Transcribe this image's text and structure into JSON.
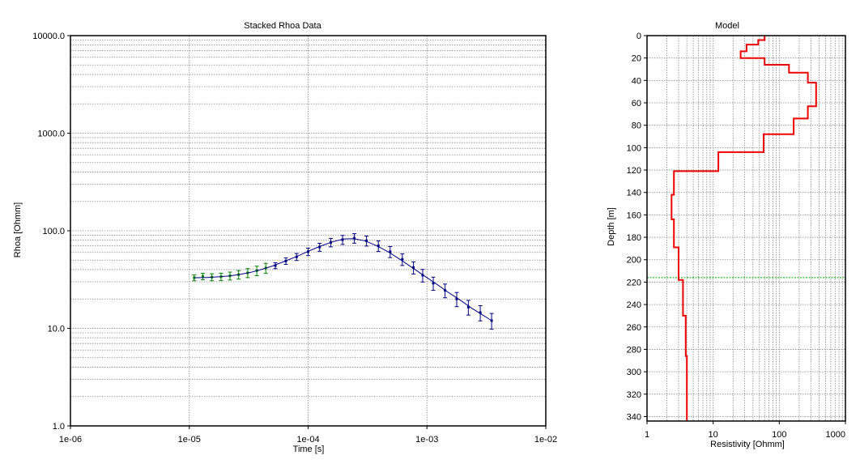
{
  "chart_data": [
    {
      "type": "line",
      "title": "Stacked Rhoa Data",
      "xlabel": "Time [s]",
      "ylabel": "Rhoa [Ohmm]",
      "x_scale": "log",
      "y_scale": "log",
      "xlim": [
        1e-06,
        0.01
      ],
      "ylim": [
        1.0,
        10000.0
      ],
      "x_ticks": [
        1e-06,
        1e-05,
        0.0001,
        0.001,
        0.01
      ],
      "x_tick_labels": [
        "1e-06",
        "1e-05",
        "1e-04",
        "1e-03",
        "1e-02"
      ],
      "y_ticks": [
        1.0,
        10.0,
        100.0,
        1000.0,
        10000.0
      ],
      "y_tick_labels": [
        "1.0",
        "10.0",
        "100.0",
        "1000.0",
        "10000.0"
      ],
      "grid": true,
      "series": [
        {
          "kind": "measured",
          "color": "#008000",
          "x": [
            1.1e-05,
            1.3e-05,
            1.55e-05,
            1.85e-05,
            2.2e-05,
            2.6e-05,
            3.1e-05,
            3.7e-05,
            4.4e-05
          ],
          "y": [
            33.0,
            34.0,
            33.5,
            33.8,
            34.5,
            35.5,
            37.0,
            39.0,
            41.5
          ]
        },
        {
          "kind": "measured",
          "color": "#000080",
          "x": [
            5.3e-05,
            6.5e-05,
            8e-05,
            0.0001,
            0.000125,
            0.000155,
            0.000195,
            0.000245,
            0.00031,
            0.00039,
            0.00049,
            0.00062,
            0.00077,
            0.00092,
            0.00113,
            0.00142,
            0.00178,
            0.00223,
            0.00281,
            0.0035
          ],
          "y": [
            44.0,
            49.0,
            54.0,
            61.0,
            68.0,
            76.0,
            81.0,
            84.0,
            79.0,
            70.0,
            61.0,
            51.0,
            42.0,
            35.0,
            29.0,
            24.5,
            20.0,
            16.5,
            14.5,
            12.0
          ]
        },
        {
          "kind": "model response",
          "color": "#000080",
          "x": [
            1.1e-05,
            1.4e-05,
            1.8e-05,
            2.2e-05,
            2.7e-05,
            3.3e-05,
            4e-05,
            5e-05,
            6.3e-05,
            8e-05,
            0.0001,
            0.000125,
            0.00016,
            0.0002,
            0.00024,
            0.0003,
            0.00038,
            0.00048,
            0.0006,
            0.00075,
            0.00095,
            0.0012,
            0.0015,
            0.0019,
            0.0024,
            0.003,
            0.0035
          ],
          "y": [
            33.0,
            33.2,
            33.8,
            34.5,
            35.8,
            37.5,
            40.0,
            43.5,
            48.5,
            54.5,
            61.5,
            69.0,
            77.0,
            82.5,
            83.0,
            79.0,
            70.0,
            60.0,
            50.5,
            42.0,
            34.5,
            28.5,
            23.5,
            19.5,
            16.0,
            13.5,
            12.0
          ]
        }
      ]
    },
    {
      "type": "line",
      "title": "Model",
      "xlabel": "Resistivity [Ohmm]",
      "ylabel": "Depth [m]",
      "x_scale": "log",
      "xlim": [
        1,
        1000
      ],
      "ylim": [
        0,
        344
      ],
      "y_inverted": true,
      "x_ticks": [
        1,
        10,
        100,
        1000
      ],
      "x_tick_labels": [
        "1",
        "10",
        "100",
        "1000"
      ],
      "y_ticks": [
        0,
        20,
        40,
        60,
        80,
        100,
        120,
        140,
        160,
        180,
        200,
        220,
        240,
        260,
        280,
        300,
        320,
        340
      ],
      "y_tick_labels": [
        "0",
        "20",
        "40",
        "60",
        "80",
        "100",
        "120",
        "140",
        "160",
        "180",
        "200",
        "220",
        "240",
        "260",
        "280",
        "300",
        "320",
        "340"
      ],
      "grid": true,
      "doi_depth": 216,
      "doi_color": "#00aa00",
      "model_color": "#ee0000",
      "layers": [
        {
          "rho": 60,
          "top": 0,
          "bottom": 4
        },
        {
          "rho": 48,
          "top": 4,
          "bottom": 8
        },
        {
          "rho": 32,
          "top": 8,
          "bottom": 14
        },
        {
          "rho": 26,
          "top": 14,
          "bottom": 20
        },
        {
          "rho": 60,
          "top": 20,
          "bottom": 26
        },
        {
          "rho": 140,
          "top": 26,
          "bottom": 33
        },
        {
          "rho": 270,
          "top": 33,
          "bottom": 42
        },
        {
          "rho": 360,
          "top": 42,
          "bottom": 63
        },
        {
          "rho": 270,
          "top": 63,
          "bottom": 74
        },
        {
          "rho": 165,
          "top": 74,
          "bottom": 88
        },
        {
          "rho": 58,
          "top": 88,
          "bottom": 104
        },
        {
          "rho": 12,
          "top": 104,
          "bottom": 121
        },
        {
          "rho": 2.55,
          "top": 121,
          "bottom": 142
        },
        {
          "rho": 2.35,
          "top": 142,
          "bottom": 164
        },
        {
          "rho": 2.55,
          "top": 164,
          "bottom": 189
        },
        {
          "rho": 3.0,
          "top": 189,
          "bottom": 218
        },
        {
          "rho": 3.5,
          "top": 218,
          "bottom": 250
        },
        {
          "rho": 3.85,
          "top": 250,
          "bottom": 286
        },
        {
          "rho": 4.0,
          "top": 286,
          "bottom": 344
        }
      ]
    }
  ]
}
